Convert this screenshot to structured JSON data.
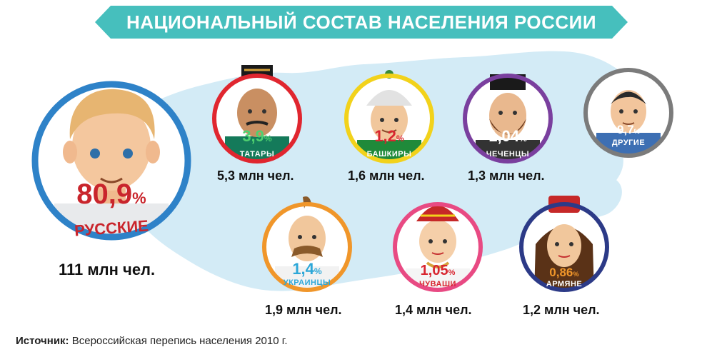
{
  "title": "НАЦИОНАЛЬНЫЙ СОСТАВ НАСЕЛЕНИЯ РОССИИ",
  "colors": {
    "teal": "#46bfbd",
    "blue": "#2e82c8",
    "red": "#e0262f",
    "yellow": "#f2d21b",
    "purple": "#7a3f9e",
    "gray": "#7b7b7b",
    "orange": "#f0962a",
    "pink": "#e84a83",
    "navy": "#2c3a87",
    "map": "#d3ebf6"
  },
  "groups": {
    "russians": {
      "pct": "80,9",
      "pct_sign": "%",
      "name": "РУССКИЕ",
      "count": "111 млн чел.",
      "ring": "blue",
      "skin": "#f4c79e",
      "hair": "#e7b571",
      "shirt": "#e8eaec",
      "text_color": "#c9252c",
      "icon": "russian-man-icon"
    },
    "tatars": {
      "pct": "3,9",
      "pct_sign": "%",
      "name": "ТАТАРЫ",
      "count": "5,3 млн чел.",
      "ring": "red",
      "icon": "tatar-man-icon"
    },
    "bashkirs": {
      "pct": "1,2",
      "pct_sign": "%",
      "name": "БАШКИРЫ",
      "count": "1,6 млн чел.",
      "ring": "yellow",
      "icon": "bashkir-man-icon"
    },
    "chechens": {
      "pct": "1,04",
      "pct_sign": "%",
      "name": "ЧЕЧЕНЦЫ",
      "count": "1,3 млн чел.",
      "ring": "purple",
      "icon": "chechen-man-icon"
    },
    "others": {
      "pct": "9,7",
      "pct_sign": "%",
      "name": "ДРУГИЕ",
      "count": "",
      "ring": "gray",
      "icon": "other-man-icon"
    },
    "ukrainians": {
      "pct": "1,4",
      "pct_sign": "%",
      "name": "УКРАИНЦЫ",
      "count": "1,9 млн чел.",
      "ring": "orange",
      "icon": "ukrainian-man-icon"
    },
    "chuvash": {
      "pct": "1,05",
      "pct_sign": "%",
      "name": "ЧУВАШИ",
      "count": "1,4 млн чел.",
      "ring": "pink",
      "icon": "chuvash-woman-icon"
    },
    "armenians": {
      "pct": "0,86",
      "pct_sign": "%",
      "name": "АРМЯНЕ",
      "count": "1,2 млн чел.",
      "ring": "navy",
      "icon": "armenian-woman-icon"
    }
  },
  "source": {
    "label": "Источник:",
    "text": " Всероссийская перепись населения 2010 г."
  }
}
